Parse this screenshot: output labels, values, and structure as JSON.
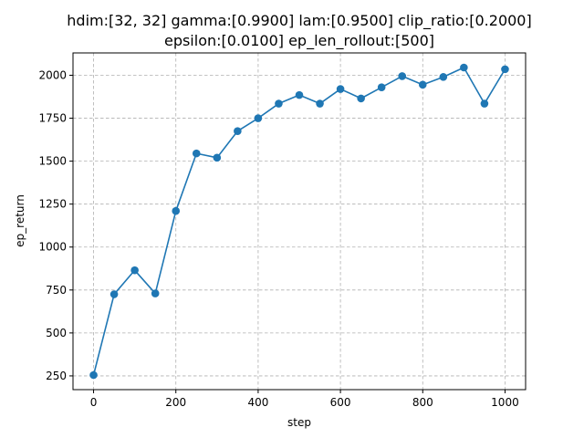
{
  "chart_data": {
    "type": "line",
    "title_line1": "hdim:[32, 32] gamma:[0.9900] lam:[0.9500] clip_ratio:[0.2000]",
    "title_line2": "epsilon:[0.0100] ep_len_rollout:[500]",
    "xlabel": "step",
    "ylabel": "ep_return",
    "xlim": [
      -50,
      1050
    ],
    "ylim": [
      170,
      2130
    ],
    "xticks": [
      0,
      200,
      400,
      600,
      800,
      1000
    ],
    "yticks": [
      250,
      500,
      750,
      1000,
      1250,
      1500,
      1750,
      2000
    ],
    "grid": true,
    "series": [
      {
        "color": "#1f77b4",
        "x": [
          0,
          50,
          100,
          150,
          200,
          250,
          300,
          350,
          400,
          450,
          500,
          550,
          600,
          650,
          700,
          750,
          800,
          850,
          900,
          950,
          1000
        ],
        "y": [
          255,
          725,
          865,
          730,
          1210,
          1545,
          1520,
          1675,
          1750,
          1835,
          1885,
          1835,
          1920,
          1865,
          1930,
          1995,
          1945,
          1990,
          2045,
          1835,
          2035
        ]
      }
    ]
  }
}
